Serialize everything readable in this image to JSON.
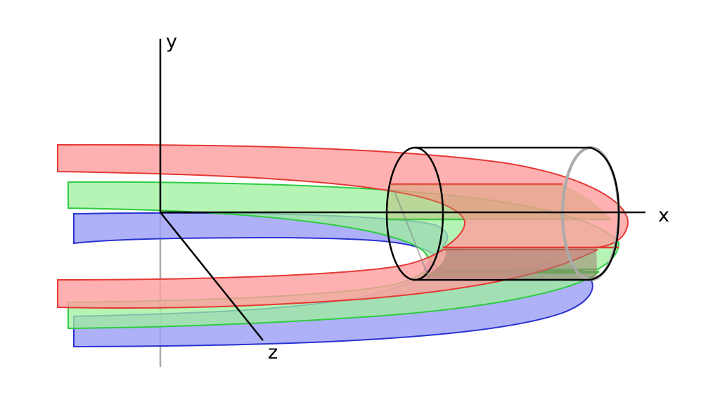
{
  "axes": {
    "x_label": "x",
    "y_label": "y",
    "z_label": "z"
  },
  "colors": {
    "red_stroke": "#e53935",
    "red_fill": "#ff9e9e",
    "green_stroke": "#2ecc40",
    "green_fill": "#9ef09e",
    "blue_stroke": "#2a32d0",
    "blue_fill": "#9a9df5",
    "axis": "#000000",
    "hidden_axis": "#aaaaaa",
    "cylinder": "#000000",
    "cylinder_back": "#aaaaaa"
  }
}
